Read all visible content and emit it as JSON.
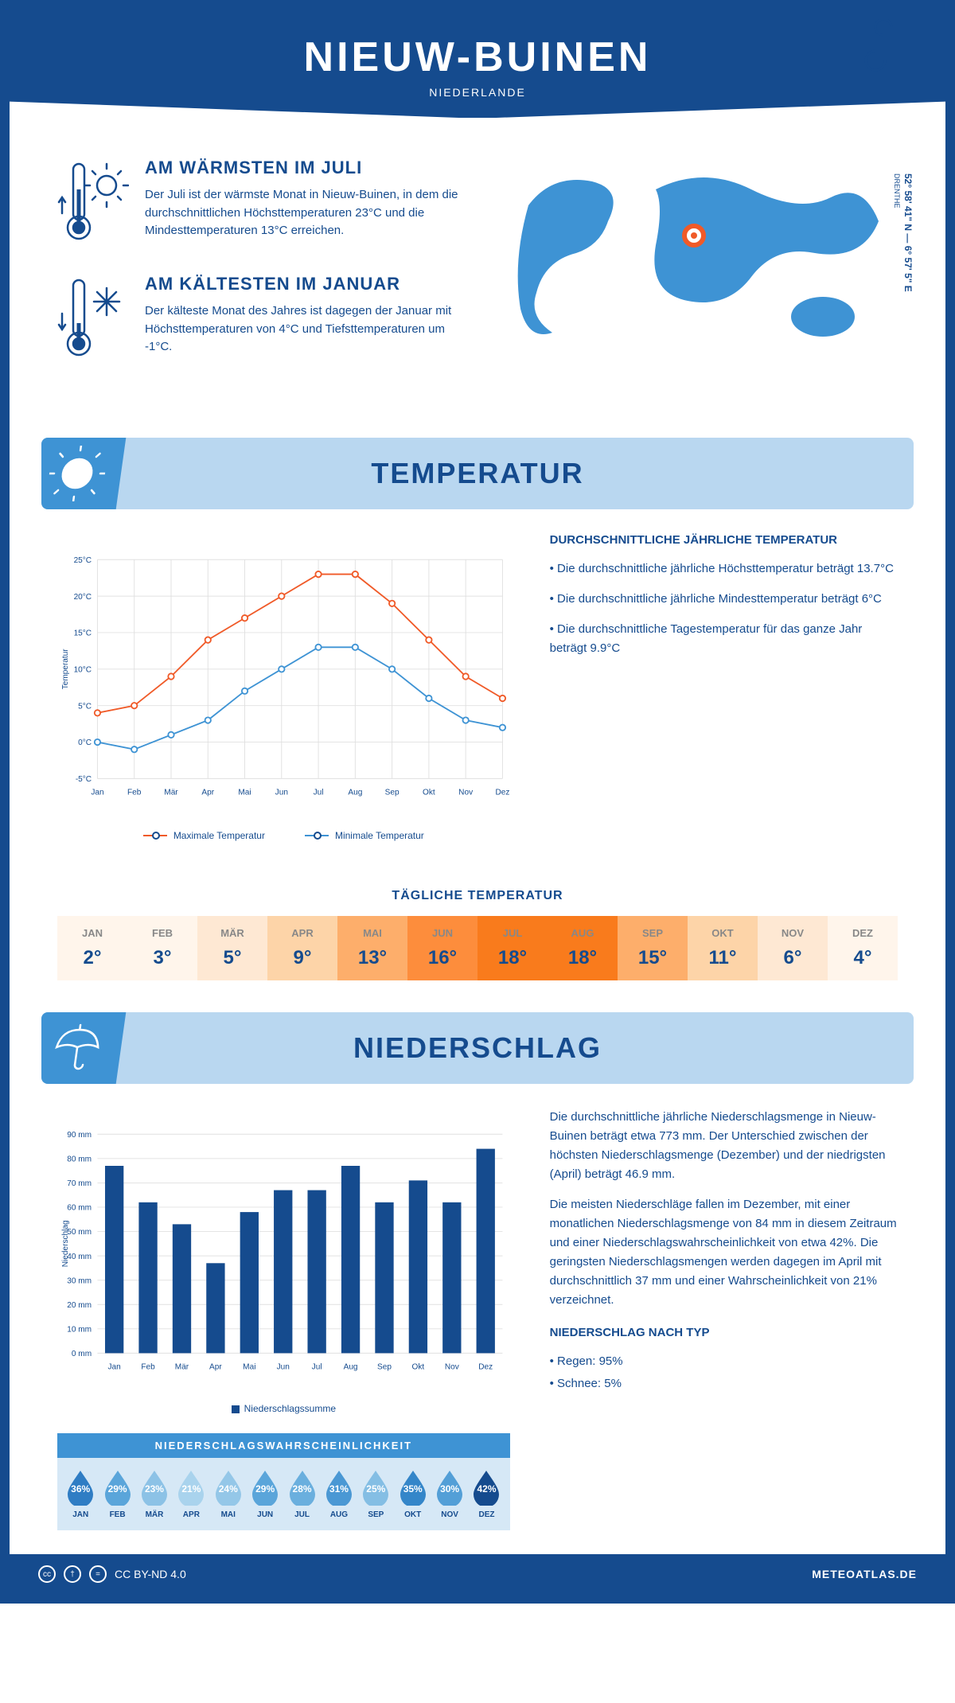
{
  "header": {
    "title": "NIEUW-BUINEN",
    "country": "NIEDERLANDE",
    "coords": "52° 58' 41\" N — 6° 57' 5\" E",
    "region": "DRENTHE"
  },
  "facts": {
    "warm": {
      "title": "AM WÄRMSTEN IM JULI",
      "text": "Der Juli ist der wärmste Monat in Nieuw-Buinen, in dem die durchschnittlichen Höchsttemperaturen 23°C und die Mindesttemperaturen 13°C erreichen."
    },
    "cold": {
      "title": "AM KÄLTESTEN IM JANUAR",
      "text": "Der kälteste Monat des Jahres ist dagegen der Januar mit Höchsttemperaturen von 4°C und Tiefsttemperaturen um -1°C."
    }
  },
  "temp_section": {
    "title": "TEMPERATUR"
  },
  "temp_chart": {
    "type": "line",
    "months": [
      "Jan",
      "Feb",
      "Mär",
      "Apr",
      "Mai",
      "Jun",
      "Jul",
      "Aug",
      "Sep",
      "Okt",
      "Nov",
      "Dez"
    ],
    "max_values": [
      4,
      5,
      9,
      14,
      17,
      20,
      23,
      23,
      19,
      14,
      9,
      6
    ],
    "min_values": [
      0,
      -1,
      1,
      3,
      7,
      10,
      13,
      13,
      10,
      6,
      3,
      2
    ],
    "max_color": "#f05a28",
    "min_color": "#3e93d4",
    "ylim": [
      -5,
      25
    ],
    "ytick_step": 5,
    "ylabel": "Temperatur",
    "grid_color": "#e0e0e0",
    "line_width": 2,
    "marker_size": 4,
    "legend_max": "Maximale Temperatur",
    "legend_min": "Minimale Temperatur"
  },
  "temp_text": {
    "heading": "DURCHSCHNITTLICHE JÄHRLICHE TEMPERATUR",
    "b1": "• Die durchschnittliche jährliche Höchsttemperatur beträgt 13.7°C",
    "b2": "• Die durchschnittliche jährliche Mindesttemperatur beträgt 6°C",
    "b3": "• Die durchschnittliche Tagestemperatur für das ganze Jahr beträgt 9.9°C"
  },
  "daily": {
    "heading": "TÄGLICHE TEMPERATUR",
    "months": [
      "JAN",
      "FEB",
      "MÄR",
      "APR",
      "MAI",
      "JUN",
      "JUL",
      "AUG",
      "SEP",
      "OKT",
      "NOV",
      "DEZ"
    ],
    "values": [
      "2°",
      "3°",
      "5°",
      "9°",
      "13°",
      "16°",
      "18°",
      "18°",
      "15°",
      "11°",
      "6°",
      "4°"
    ],
    "colors": [
      "#fff5eb",
      "#fff5eb",
      "#fee8d3",
      "#fdd4a8",
      "#fdae6b",
      "#fd8d3c",
      "#f97b1c",
      "#f97b1c",
      "#fdae6b",
      "#fdd4a8",
      "#fee8d3",
      "#fff5eb"
    ]
  },
  "precip_section": {
    "title": "NIEDERSCHLAG"
  },
  "precip_chart": {
    "type": "bar",
    "months": [
      "Jan",
      "Feb",
      "Mär",
      "Apr",
      "Mai",
      "Jun",
      "Jul",
      "Aug",
      "Sep",
      "Okt",
      "Nov",
      "Dez"
    ],
    "values": [
      77,
      62,
      53,
      37,
      58,
      67,
      67,
      77,
      62,
      71,
      62,
      84
    ],
    "bar_color": "#154b8e",
    "ylim": [
      0,
      90
    ],
    "ytick_step": 10,
    "ylabel": "Niederschlag",
    "grid_color": "#e0e0e0",
    "bar_width": 0.55,
    "legend": "Niederschlagssumme"
  },
  "precip_text": {
    "p1": "Die durchschnittliche jährliche Niederschlagsmenge in Nieuw-Buinen beträgt etwa 773 mm. Der Unterschied zwischen der höchsten Niederschlagsmenge (Dezember) und der niedrigsten (April) beträgt 46.9 mm.",
    "p2": "Die meisten Niederschläge fallen im Dezember, mit einer monatlichen Niederschlagsmenge von 84 mm in diesem Zeitraum und einer Niederschlagswahrscheinlichkeit von etwa 42%. Die geringsten Niederschlagsmengen werden dagegen im April mit durchschnittlich 37 mm und einer Wahrscheinlichkeit von 21% verzeichnet.",
    "type_heading": "NIEDERSCHLAG NACH TYP",
    "type1": "• Regen: 95%",
    "type2": "• Schnee: 5%"
  },
  "prob": {
    "heading": "NIEDERSCHLAGSWAHRSCHEINLICHKEIT",
    "months": [
      "JAN",
      "FEB",
      "MÄR",
      "APR",
      "MAI",
      "JUN",
      "JUL",
      "AUG",
      "SEP",
      "OKT",
      "NOV",
      "DEZ"
    ],
    "values": [
      "36%",
      "29%",
      "23%",
      "21%",
      "24%",
      "29%",
      "28%",
      "31%",
      "25%",
      "35%",
      "30%",
      "42%"
    ],
    "colors": [
      "#2f7dc4",
      "#5aa5da",
      "#8cc2e6",
      "#a9d3ed",
      "#94c7e8",
      "#5aa5da",
      "#6aafde",
      "#4a98d4",
      "#84bee4",
      "#3486c9",
      "#539fd7",
      "#154b8e"
    ]
  },
  "footer": {
    "license": "CC BY-ND 4.0",
    "site": "METEOATLAS.DE"
  }
}
